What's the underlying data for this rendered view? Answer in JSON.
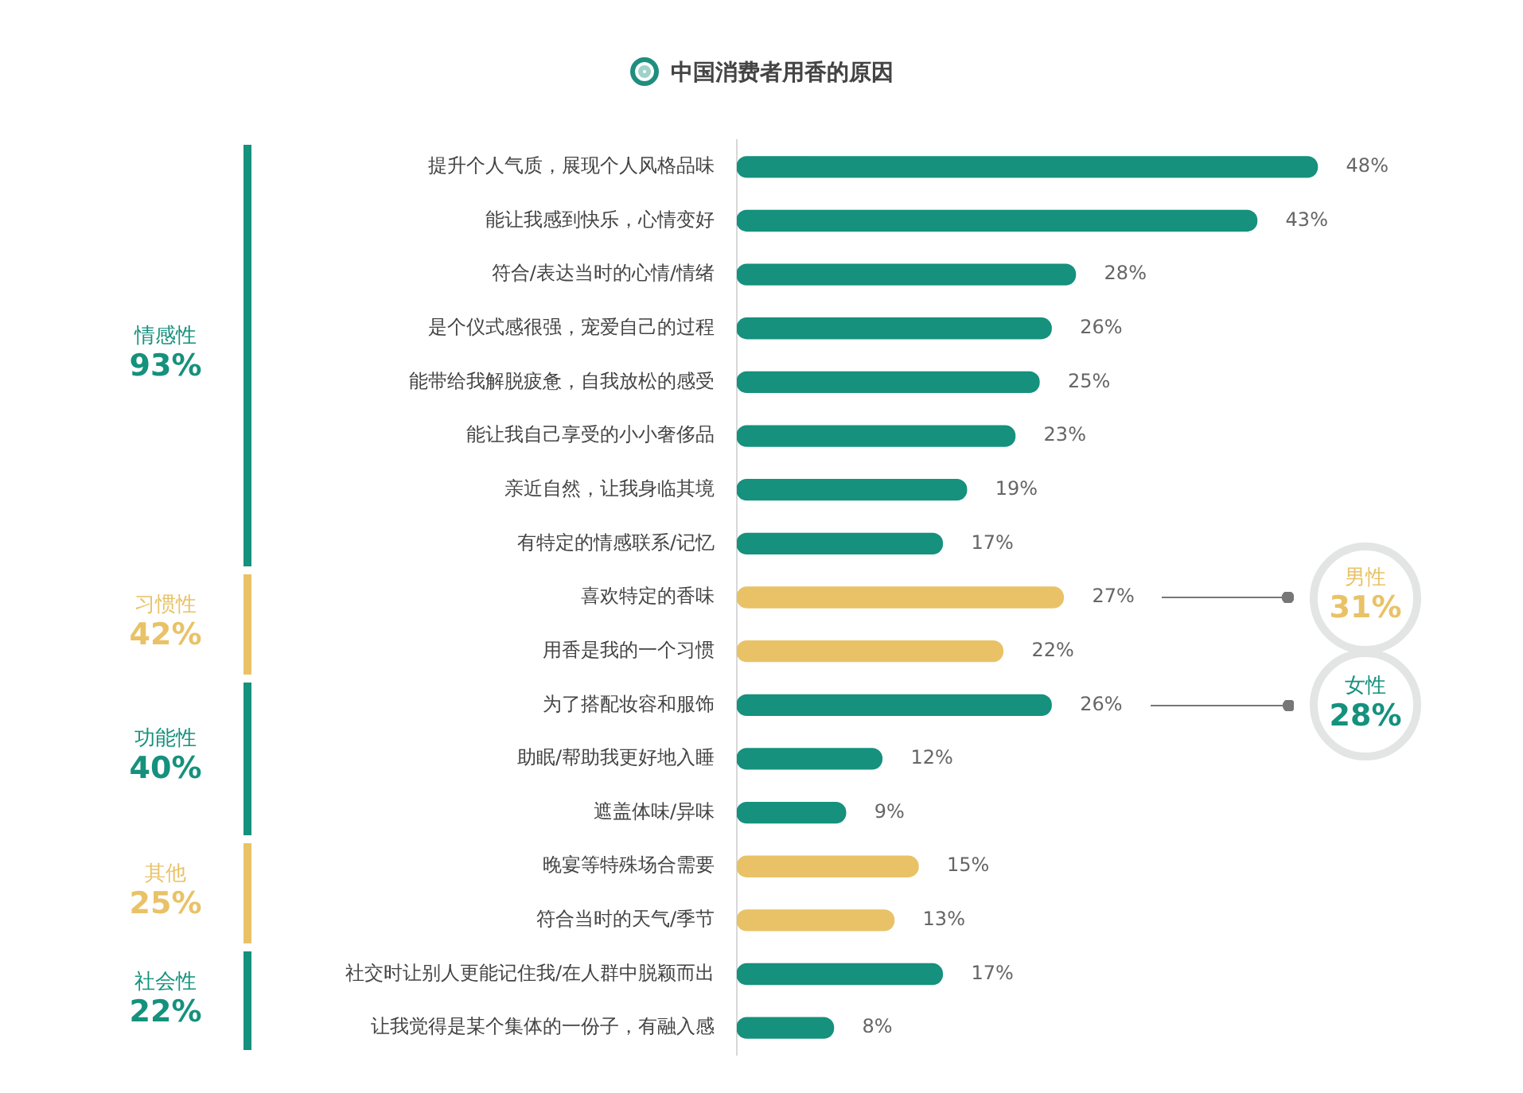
{
  "chart_data": {
    "type": "bar",
    "orientation": "horizontal",
    "title": "中国消费者用香的原因",
    "categories": [
      "提升个人气质，展现个人风格品味",
      "能让我感到快乐，心情变好",
      "符合/表达当时的心情/情绪",
      "是个仪式感很强，宠爱自己的过程",
      "能带给我解脱疲惫，自我放松的感受",
      "能让我自己享受的小小奢侈品",
      "亲近自然，让我身临其境",
      "有特定的情感联系/记忆",
      "喜欢特定的香味",
      "用香是我的一个习惯",
      "为了搭配妆容和服饰",
      "助眠/帮助我更好地入睡",
      "遮盖体味/异味",
      "晚宴等特殊场合需要",
      "符合当时的天气/季节",
      "社交时让别人更能记住我/在人群中脱颖而出",
      "让我觉得是某个集体的一份子，有融入感"
    ],
    "values": [
      48,
      43,
      28,
      26,
      25,
      23,
      19,
      17,
      27,
      22,
      26,
      12,
      9,
      15,
      13,
      17,
      8
    ],
    "value_labels": [
      "48%",
      "43%",
      "28%",
      "26%",
      "25%",
      "23%",
      "19%",
      "17%",
      "27%",
      "22%",
      "26%",
      "12%",
      "9%",
      "15%",
      "13%",
      "17%",
      "8%"
    ],
    "colors": [
      "#15917d",
      "#15917d",
      "#15917d",
      "#15917d",
      "#15917d",
      "#15917d",
      "#15917d",
      "#15917d",
      "#e9c267",
      "#e9c267",
      "#15917d",
      "#15917d",
      "#15917d",
      "#e9c267",
      "#e9c267",
      "#15917d",
      "#15917d"
    ],
    "tick_labels": "y",
    "legend": false,
    "annotations": [
      "情感性\n93%",
      "习惯性\n42%",
      "功能性\n40%",
      "其他\n25%",
      "社会性\n22%",
      "男性\n31%",
      "女性\n28%"
    ]
  }
}
